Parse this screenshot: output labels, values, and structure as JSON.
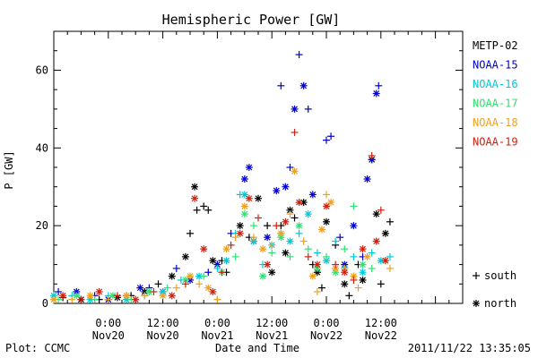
{
  "chart_data": {
    "type": "scatter",
    "title": "Hemispheric Power [GW]",
    "ylabel": "P [GW]",
    "xlabel": "Date and Time",
    "ylim": [
      0,
      70
    ],
    "y_ticks": [
      0,
      20,
      40,
      60
    ],
    "xlim_hours": [
      0,
      90
    ],
    "x_ticks": [
      {
        "hour": 12,
        "time": "0:00",
        "date": "Nov20"
      },
      {
        "hour": 24,
        "time": "12:00",
        "date": "Nov20"
      },
      {
        "hour": 36,
        "time": "0:00",
        "date": "Nov21"
      },
      {
        "hour": 48,
        "time": "12:00",
        "date": "Nov21"
      },
      {
        "hour": 60,
        "time": "0:00",
        "date": "Nov22"
      },
      {
        "hour": 72,
        "time": "12:00",
        "date": "Nov22"
      }
    ],
    "legend_position": "right",
    "marker_legend": [
      {
        "marker": "+",
        "label": "south"
      },
      {
        "marker": "*",
        "label": "north"
      }
    ],
    "footer_left": "Plot: CCMC",
    "footer_right": "2011/11/22 13:35:05",
    "series": [
      {
        "name": "METP-02",
        "color": "#000000",
        "points": [
          [
            2,
            1.5,
            "+"
          ],
          [
            6,
            1,
            "*"
          ],
          [
            10,
            1,
            "+"
          ],
          [
            14,
            1.5,
            "*"
          ],
          [
            17,
            2,
            "+"
          ],
          [
            20,
            3,
            "*"
          ],
          [
            23,
            5,
            "+"
          ],
          [
            26,
            7,
            "*"
          ],
          [
            29,
            12,
            "*"
          ],
          [
            30,
            18,
            "+"
          ],
          [
            31,
            30,
            "*"
          ],
          [
            31.5,
            24,
            "+"
          ],
          [
            33,
            25,
            "+"
          ],
          [
            34,
            24,
            "+"
          ],
          [
            35,
            11,
            "*"
          ],
          [
            37,
            11,
            "+"
          ],
          [
            38,
            8,
            "+"
          ],
          [
            41,
            20,
            "*"
          ],
          [
            43,
            17,
            "+"
          ],
          [
            44,
            16,
            "*"
          ],
          [
            45,
            27,
            "*"
          ],
          [
            47,
            20,
            "+"
          ],
          [
            48,
            8,
            "*"
          ],
          [
            50,
            20,
            "+"
          ],
          [
            51,
            13,
            "*"
          ],
          [
            52,
            24,
            "*"
          ],
          [
            53,
            22,
            "+"
          ],
          [
            55,
            26,
            "*"
          ],
          [
            57,
            10,
            "+"
          ],
          [
            58,
            8,
            "*"
          ],
          [
            59,
            4,
            "+"
          ],
          [
            60,
            21,
            "*"
          ],
          [
            62,
            15,
            "+"
          ],
          [
            64,
            5,
            "*"
          ],
          [
            65,
            2,
            "+"
          ],
          [
            67,
            10,
            "+"
          ],
          [
            68,
            6,
            "*"
          ],
          [
            70,
            37,
            "*"
          ],
          [
            71,
            23,
            "*"
          ],
          [
            72,
            5,
            "+"
          ],
          [
            73,
            18,
            "*"
          ],
          [
            74,
            21,
            "+"
          ]
        ]
      },
      {
        "name": "NOAA-15",
        "color": "#0000d0",
        "points": [
          [
            1,
            3,
            "+"
          ],
          [
            5,
            3,
            "*"
          ],
          [
            9,
            2,
            "+"
          ],
          [
            12,
            1,
            "*"
          ],
          [
            16,
            2,
            "+"
          ],
          [
            19,
            4,
            "*"
          ],
          [
            21,
            4,
            "+"
          ],
          [
            24,
            3,
            "*"
          ],
          [
            27,
            9,
            "+"
          ],
          [
            30,
            6,
            "*"
          ],
          [
            34,
            8,
            "+"
          ],
          [
            36,
            10,
            "*"
          ],
          [
            39,
            18,
            "+"
          ],
          [
            42,
            32,
            "*"
          ],
          [
            43,
            35,
            "*"
          ],
          [
            47,
            17,
            "*"
          ],
          [
            49,
            29,
            "*"
          ],
          [
            50,
            56,
            "+"
          ],
          [
            51,
            30,
            "*"
          ],
          [
            52,
            35,
            "+"
          ],
          [
            53,
            50,
            "*"
          ],
          [
            54,
            64,
            "+"
          ],
          [
            55,
            56,
            "*"
          ],
          [
            56,
            50,
            "+"
          ],
          [
            57,
            28,
            "*"
          ],
          [
            60,
            42,
            "+"
          ],
          [
            61,
            43,
            "+"
          ],
          [
            63,
            17,
            "+"
          ],
          [
            64,
            10,
            "*"
          ],
          [
            66,
            20,
            "*"
          ],
          [
            68,
            12,
            "+"
          ],
          [
            69,
            32,
            "*"
          ],
          [
            70,
            37,
            "+"
          ],
          [
            71,
            54,
            "*"
          ],
          [
            71.5,
            56,
            "+"
          ]
        ]
      },
      {
        "name": "NOAA-16",
        "color": "#00c8d8",
        "points": [
          [
            0,
            2,
            "*"
          ],
          [
            4,
            2,
            "+"
          ],
          [
            8,
            1,
            "*"
          ],
          [
            12,
            2,
            "+"
          ],
          [
            16,
            1,
            "*"
          ],
          [
            20,
            2,
            "+"
          ],
          [
            24,
            3,
            "*"
          ],
          [
            28,
            6,
            "+"
          ],
          [
            32,
            7,
            "*"
          ],
          [
            36,
            9,
            "+"
          ],
          [
            38,
            11,
            "*"
          ],
          [
            40,
            18,
            "+"
          ],
          [
            41,
            28,
            "+"
          ],
          [
            42,
            28,
            "*"
          ],
          [
            44,
            16,
            "*"
          ],
          [
            46,
            10,
            "+"
          ],
          [
            48,
            15,
            "*"
          ],
          [
            50,
            18,
            "+"
          ],
          [
            52,
            16,
            "*"
          ],
          [
            54,
            18,
            "+"
          ],
          [
            56,
            23,
            "*"
          ],
          [
            58,
            13,
            "+"
          ],
          [
            60,
            11,
            "*"
          ],
          [
            62,
            16,
            "+"
          ],
          [
            64,
            9,
            "*"
          ],
          [
            66,
            12,
            "+"
          ],
          [
            68,
            8,
            "*"
          ],
          [
            70,
            13,
            "+"
          ],
          [
            72,
            11,
            "*"
          ],
          [
            74,
            12,
            "+"
          ]
        ]
      },
      {
        "name": "NOAA-17",
        "color": "#30e070",
        "points": [
          [
            1,
            1,
            "+"
          ],
          [
            5,
            2,
            "*"
          ],
          [
            9,
            1,
            "+"
          ],
          [
            13,
            2,
            "*"
          ],
          [
            17,
            1,
            "+"
          ],
          [
            21,
            3,
            "*"
          ],
          [
            25,
            4,
            "+"
          ],
          [
            29,
            6,
            "*"
          ],
          [
            33,
            7,
            "+"
          ],
          [
            37,
            8,
            "*"
          ],
          [
            40,
            12,
            "+"
          ],
          [
            42,
            23,
            "*"
          ],
          [
            44,
            20,
            "+"
          ],
          [
            46,
            7,
            "*"
          ],
          [
            48,
            13,
            "+"
          ],
          [
            50,
            17,
            "*"
          ],
          [
            52,
            12,
            "+"
          ],
          [
            54,
            20,
            "*"
          ],
          [
            56,
            14,
            "+"
          ],
          [
            58,
            9,
            "*"
          ],
          [
            60,
            12,
            "+"
          ],
          [
            62,
            8,
            "*"
          ],
          [
            64,
            14,
            "+"
          ],
          [
            66,
            25,
            "+"
          ],
          [
            68,
            10,
            "*"
          ],
          [
            70,
            9,
            "+"
          ]
        ]
      },
      {
        "name": "NOAA-18",
        "color": "#f0a020",
        "points": [
          [
            0,
            1,
            "*"
          ],
          [
            4,
            1,
            "+"
          ],
          [
            8,
            2,
            "*"
          ],
          [
            12,
            1,
            "+"
          ],
          [
            16,
            2,
            "*"
          ],
          [
            20,
            2,
            "+"
          ],
          [
            24,
            2,
            "*"
          ],
          [
            27,
            4,
            "+"
          ],
          [
            30,
            7,
            "*"
          ],
          [
            32,
            5,
            "+"
          ],
          [
            34,
            4,
            "*"
          ],
          [
            36,
            1,
            "+"
          ],
          [
            38,
            14,
            "*"
          ],
          [
            40,
            17,
            "+"
          ],
          [
            42,
            25,
            "*"
          ],
          [
            44,
            17,
            "+"
          ],
          [
            46,
            14,
            "*"
          ],
          [
            48,
            15,
            "+"
          ],
          [
            50,
            18,
            "*"
          ],
          [
            52,
            23,
            "+"
          ],
          [
            53,
            34,
            "*"
          ],
          [
            55,
            16,
            "+"
          ],
          [
            57,
            7,
            "*"
          ],
          [
            58,
            3,
            "+"
          ],
          [
            59,
            19,
            "*"
          ],
          [
            60,
            28,
            "+"
          ],
          [
            61,
            26,
            "*"
          ],
          [
            62,
            9,
            "*"
          ],
          [
            64,
            9,
            "+"
          ],
          [
            66,
            7,
            "*"
          ],
          [
            67,
            4,
            "+"
          ],
          [
            69,
            12,
            "*"
          ],
          [
            71,
            16,
            "+"
          ],
          [
            73,
            11,
            "*"
          ],
          [
            74,
            9,
            "+"
          ]
        ]
      },
      {
        "name": "NOAA-19",
        "color": "#d02010",
        "points": [
          [
            2,
            2,
            "*"
          ],
          [
            6,
            1,
            "+"
          ],
          [
            10,
            3,
            "*"
          ],
          [
            14,
            2,
            "+"
          ],
          [
            18,
            1,
            "*"
          ],
          [
            22,
            3,
            "+"
          ],
          [
            26,
            2,
            "*"
          ],
          [
            29,
            5,
            "+"
          ],
          [
            31,
            27,
            "*"
          ],
          [
            33,
            14,
            "*"
          ],
          [
            35,
            3,
            "*"
          ],
          [
            37,
            8,
            "+"
          ],
          [
            39,
            15,
            "+"
          ],
          [
            41,
            18,
            "*"
          ],
          [
            43,
            27,
            "*"
          ],
          [
            45,
            22,
            "+"
          ],
          [
            47,
            10,
            "*"
          ],
          [
            49,
            20,
            "+"
          ],
          [
            51,
            21,
            "*"
          ],
          [
            53,
            44,
            "+"
          ],
          [
            54,
            26,
            "*"
          ],
          [
            56,
            12,
            "+"
          ],
          [
            58,
            10,
            "*"
          ],
          [
            60,
            25,
            "*"
          ],
          [
            62,
            10,
            "+"
          ],
          [
            64,
            8,
            "*"
          ],
          [
            66,
            6,
            "+"
          ],
          [
            68,
            14,
            "*"
          ],
          [
            70,
            38,
            "+"
          ],
          [
            71,
            16,
            "*"
          ],
          [
            72,
            24,
            "+"
          ],
          [
            73,
            11,
            "*"
          ]
        ]
      }
    ]
  }
}
